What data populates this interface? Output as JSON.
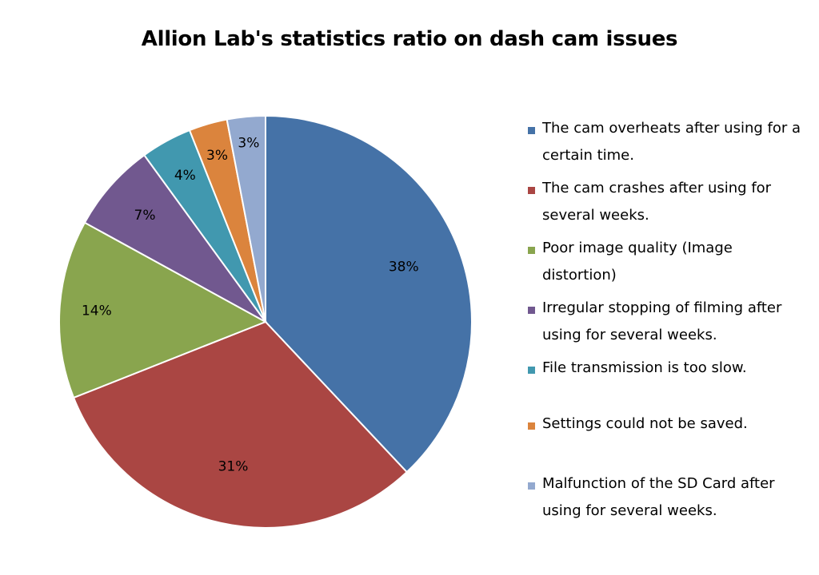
{
  "chart_data": {
    "type": "pie",
    "title": "Allion Lab's statistics ratio on dash cam issues",
    "legend_position": "right",
    "slices": [
      {
        "label": "The cam overheats after using for a certain time.",
        "value": 38,
        "display": "38%",
        "color": "#4572a7"
      },
      {
        "label": "The cam crashes after using for several weeks.",
        "value": 31,
        "display": "31%",
        "color": "#aa4643"
      },
      {
        "label": "Poor image quality (Image distortion)",
        "value": 14,
        "display": "14%",
        "color": "#89a54e"
      },
      {
        "label": "Irregular stopping of filming after using for several weeks.",
        "value": 7,
        "display": "7%",
        "color": "#71588f"
      },
      {
        "label": "File transmission is too slow.",
        "value": 4,
        "display": "4%",
        "color": "#4198af"
      },
      {
        "label": "Settings could not be saved.",
        "value": 3,
        "display": "3%",
        "color": "#db843d"
      },
      {
        "label": "Malfunction of the SD Card after using for several weeks.",
        "value": 3,
        "display": "3%",
        "color": "#93a9cf"
      }
    ]
  }
}
